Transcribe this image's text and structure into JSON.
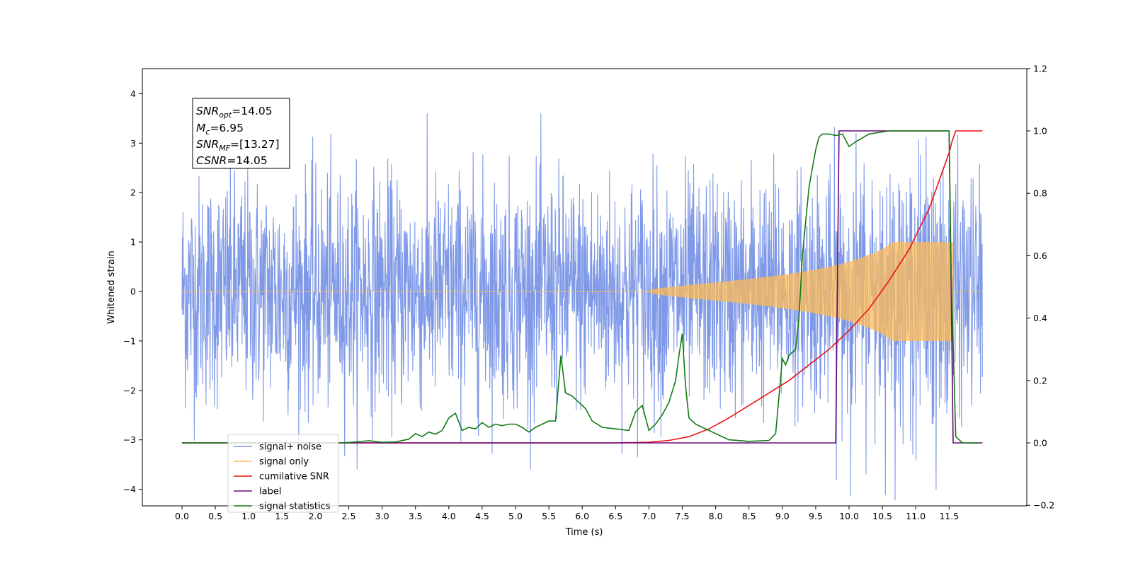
{
  "chart_data": {
    "type": "line",
    "xlabel": "Time (s)",
    "ylabel": "Whitened strain",
    "xlim": [
      -0.6,
      12.6
    ],
    "ylim": [
      -4.35,
      4.5
    ],
    "y2lim": [
      -0.2,
      1.2
    ],
    "xticks": [
      "0.0",
      "0.5",
      "1.0",
      "1.5",
      "2.0",
      "2.5",
      "3.0",
      "3.5",
      "4.0",
      "4.5",
      "5.0",
      "5.5",
      "6.0",
      "6.5",
      "7.0",
      "7.5",
      "8.0",
      "8.5",
      "9.0",
      "9.5",
      "10.0",
      "10.5",
      "11.0",
      "11.5"
    ],
    "yticks": [
      "−4",
      "−3",
      "−2",
      "−1",
      "0",
      "1",
      "2",
      "3",
      "4"
    ],
    "y2ticks": [
      "−0.2",
      "0.0",
      "0.2",
      "0.4",
      "0.6",
      "0.8",
      "1.0",
      "1.2"
    ],
    "grid": false,
    "legend_position": "bottom-left",
    "annotation": {
      "snr_opt": {
        "base": "SNR",
        "sub": "opt",
        "value": "=14.05"
      },
      "mc": {
        "base": "M",
        "sub": "c",
        "value": "=6.95"
      },
      "snr_mf": {
        "base": "SNR",
        "sub": "MF",
        "value": "=[13.27]"
      },
      "csnr": {
        "base": "CSNR",
        "sub": "",
        "value": "=14.05"
      }
    },
    "series": [
      {
        "name": "signal+ noise",
        "color": "#7893e6",
        "axis": "left",
        "description_values": {
          "x_range": [
            0.0,
            12.0
          ],
          "amplitude_envelope": [
            -1.8,
            1.8
          ],
          "peak_max": 4.1,
          "peak_min": -3.8
        }
      },
      {
        "name": "signal only",
        "color": "#ffbb55",
        "axis": "left",
        "description_values": {
          "x_range": [
            0.0,
            12.0
          ],
          "chirp_start": 7.0,
          "merger": 11.55,
          "peak_amplitude": 1.0
        }
      },
      {
        "name": "cumilative SNR",
        "color": "#ee1111",
        "axis": "right",
        "x": [
          0.0,
          6.5,
          7.0,
          7.3,
          7.6,
          7.9,
          8.2,
          8.5,
          8.8,
          9.1,
          9.4,
          9.7,
          10.0,
          10.3,
          10.6,
          10.9,
          11.2,
          11.4,
          11.5,
          11.55,
          11.6,
          12.0
        ],
        "y": [
          0.0,
          0.0,
          0.002,
          0.008,
          0.02,
          0.045,
          0.08,
          0.12,
          0.16,
          0.2,
          0.25,
          0.3,
          0.36,
          0.43,
          0.52,
          0.62,
          0.75,
          0.87,
          0.93,
          0.97,
          1.0,
          1.0
        ]
      },
      {
        "name": "label",
        "color": "#6a0a7a",
        "axis": "right",
        "x": [
          0.0,
          9.8,
          9.85,
          11.5,
          11.56,
          12.0
        ],
        "y": [
          0.0,
          0.0,
          1.0,
          1.0,
          0.0,
          0.0
        ]
      },
      {
        "name": "signal statistics",
        "color": "#137a13",
        "axis": "right",
        "x": [
          0.0,
          2.4,
          2.6,
          2.8,
          3.0,
          3.2,
          3.4,
          3.5,
          3.6,
          3.7,
          3.8,
          3.9,
          4.0,
          4.1,
          4.2,
          4.3,
          4.4,
          4.5,
          4.6,
          4.7,
          4.8,
          4.9,
          5.0,
          5.1,
          5.2,
          5.3,
          5.4,
          5.5,
          5.6,
          5.68,
          5.75,
          5.85,
          5.95,
          6.05,
          6.15,
          6.3,
          6.5,
          6.7,
          6.8,
          6.9,
          7.0,
          7.1,
          7.2,
          7.3,
          7.4,
          7.45,
          7.5,
          7.55,
          7.6,
          7.7,
          7.8,
          7.9,
          8.0,
          8.2,
          8.5,
          8.8,
          8.9,
          9.0,
          9.05,
          9.1,
          9.2,
          9.25,
          9.3,
          9.4,
          9.5,
          9.55,
          9.6,
          9.7,
          9.8,
          9.9,
          10.0,
          10.1,
          10.3,
          10.6,
          11.0,
          11.5,
          11.53,
          11.6,
          11.7,
          11.95
        ],
        "y": [
          0.0,
          0.0,
          0.003,
          0.007,
          0.002,
          0.003,
          0.012,
          0.03,
          0.02,
          0.035,
          0.028,
          0.04,
          0.08,
          0.095,
          0.04,
          0.05,
          0.045,
          0.065,
          0.05,
          0.06,
          0.055,
          0.06,
          0.06,
          0.05,
          0.035,
          0.05,
          0.06,
          0.07,
          0.07,
          0.28,
          0.16,
          0.15,
          0.13,
          0.11,
          0.07,
          0.05,
          0.045,
          0.04,
          0.1,
          0.12,
          0.04,
          0.06,
          0.09,
          0.13,
          0.2,
          0.28,
          0.35,
          0.18,
          0.08,
          0.06,
          0.05,
          0.04,
          0.03,
          0.01,
          0.005,
          0.008,
          0.03,
          0.27,
          0.25,
          0.28,
          0.3,
          0.4,
          0.6,
          0.82,
          0.94,
          0.98,
          0.99,
          0.99,
          0.985,
          0.99,
          0.95,
          0.965,
          0.99,
          1.0,
          1.0,
          1.0,
          0.55,
          0.02,
          0.0,
          0.0
        ]
      }
    ]
  }
}
